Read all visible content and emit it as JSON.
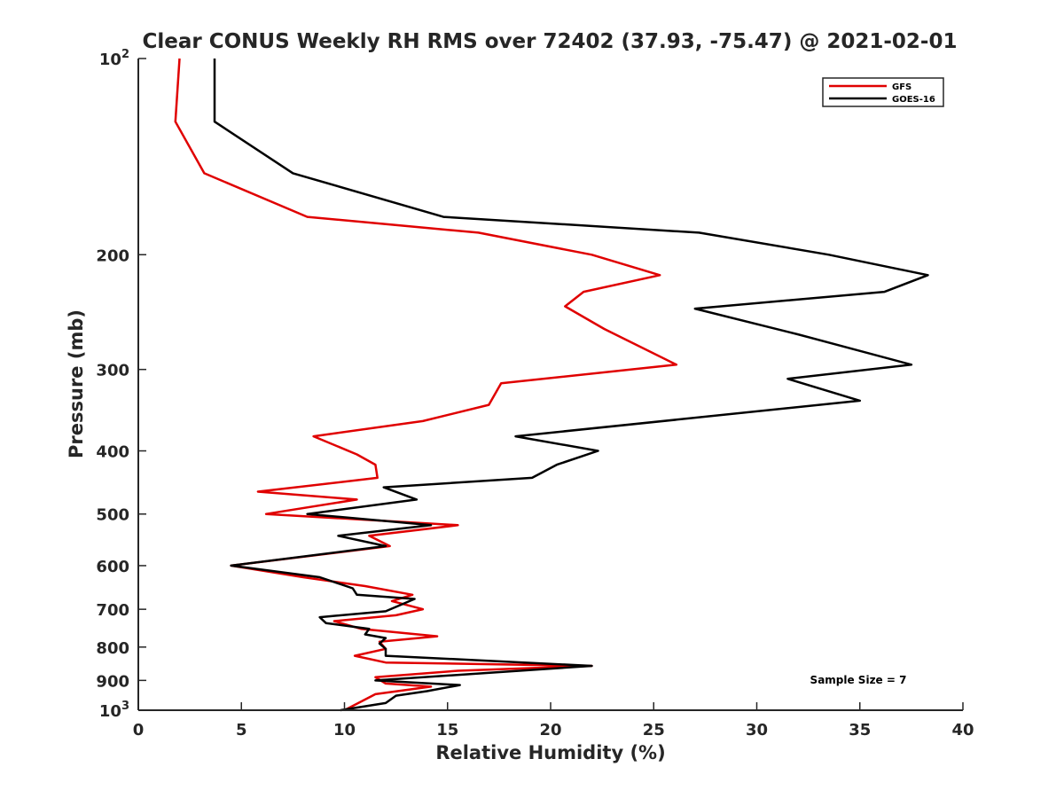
{
  "chart_data": {
    "type": "line",
    "title": "Clear CONUS Weekly RH RMS over 72402 (37.93, -75.47) @ 2021-02-01",
    "xlabel": "Relative Humidity (%)",
    "ylabel": "Pressure (mb)",
    "xlim": [
      0,
      40
    ],
    "ylim": [
      100,
      1000
    ],
    "yscale": "log",
    "y_reversed": true,
    "xticks": [
      0,
      5,
      10,
      15,
      20,
      25,
      30,
      35,
      40
    ],
    "xtick_labels": [
      "0",
      "5",
      "10",
      "15",
      "20",
      "25",
      "30",
      "35",
      "40"
    ],
    "yticks": [
      100,
      200,
      300,
      400,
      500,
      600,
      700,
      800,
      900,
      1000
    ],
    "ytick_labels": [
      {
        "base": "10",
        "exp": "2"
      },
      {
        "base": "200",
        "exp": ""
      },
      {
        "base": "300",
        "exp": ""
      },
      {
        "base": "400",
        "exp": ""
      },
      {
        "base": "500",
        "exp": ""
      },
      {
        "base": "600",
        "exp": ""
      },
      {
        "base": "700",
        "exp": ""
      },
      {
        "base": "800",
        "exp": ""
      },
      {
        "base": "900",
        "exp": ""
      },
      {
        "base": "10",
        "exp": "3"
      }
    ],
    "legend_position": "top-right",
    "annotation": "Sample Size = 7",
    "series": [
      {
        "name": "GFS",
        "color": "#e00000",
        "points": [
          [
            2.0,
            100
          ],
          [
            1.8,
            125
          ],
          [
            3.2,
            150
          ],
          [
            8.2,
            175
          ],
          [
            16.5,
            185
          ],
          [
            22.0,
            200
          ],
          [
            25.3,
            215
          ],
          [
            21.6,
            228
          ],
          [
            20.7,
            240
          ],
          [
            22.6,
            260
          ],
          [
            26.1,
            295
          ],
          [
            17.6,
            315
          ],
          [
            17.0,
            340
          ],
          [
            13.8,
            360
          ],
          [
            8.5,
            380
          ],
          [
            10.6,
            405
          ],
          [
            11.5,
            420
          ],
          [
            11.6,
            440
          ],
          [
            5.8,
            462
          ],
          [
            10.6,
            475
          ],
          [
            6.2,
            500
          ],
          [
            15.5,
            520
          ],
          [
            11.2,
            540
          ],
          [
            12.2,
            560
          ],
          [
            4.5,
            600
          ],
          [
            8.0,
            625
          ],
          [
            11.0,
            645
          ],
          [
            13.3,
            665
          ],
          [
            12.3,
            680
          ],
          [
            13.8,
            700
          ],
          [
            12.5,
            715
          ],
          [
            9.5,
            730
          ],
          [
            10.8,
            750
          ],
          [
            14.5,
            770
          ],
          [
            11.7,
            785
          ],
          [
            12.0,
            805
          ],
          [
            10.5,
            825
          ],
          [
            12.0,
            845
          ],
          [
            22.0,
            855
          ],
          [
            15.5,
            870
          ],
          [
            11.5,
            890
          ],
          [
            12.0,
            910
          ],
          [
            14.2,
            920
          ],
          [
            11.5,
            945
          ],
          [
            10.0,
            1000
          ]
        ]
      },
      {
        "name": "GOES-16",
        "color": "#000000",
        "points": [
          [
            3.7,
            100
          ],
          [
            3.7,
            125
          ],
          [
            7.5,
            150
          ],
          [
            14.8,
            175
          ],
          [
            27.2,
            185
          ],
          [
            33.5,
            200
          ],
          [
            38.3,
            215
          ],
          [
            36.2,
            228
          ],
          [
            27.0,
            242
          ],
          [
            32.0,
            265
          ],
          [
            37.5,
            295
          ],
          [
            31.5,
            310
          ],
          [
            35.0,
            335
          ],
          [
            18.3,
            380
          ],
          [
            22.3,
            400
          ],
          [
            20.3,
            420
          ],
          [
            19.1,
            440
          ],
          [
            11.9,
            455
          ],
          [
            13.5,
            475
          ],
          [
            8.2,
            500
          ],
          [
            14.2,
            520
          ],
          [
            9.7,
            540
          ],
          [
            12.0,
            560
          ],
          [
            4.5,
            600
          ],
          [
            8.8,
            625
          ],
          [
            10.4,
            650
          ],
          [
            10.6,
            665
          ],
          [
            13.4,
            675
          ],
          [
            12.0,
            705
          ],
          [
            8.8,
            720
          ],
          [
            9.1,
            735
          ],
          [
            11.2,
            750
          ],
          [
            11.0,
            765
          ],
          [
            12.0,
            775
          ],
          [
            11.7,
            790
          ],
          [
            12.0,
            805
          ],
          [
            12.0,
            825
          ],
          [
            22.0,
            855
          ],
          [
            11.5,
            900
          ],
          [
            15.6,
            915
          ],
          [
            14.0,
            935
          ],
          [
            12.5,
            950
          ],
          [
            12.0,
            975
          ],
          [
            9.8,
            1000
          ]
        ]
      }
    ]
  }
}
